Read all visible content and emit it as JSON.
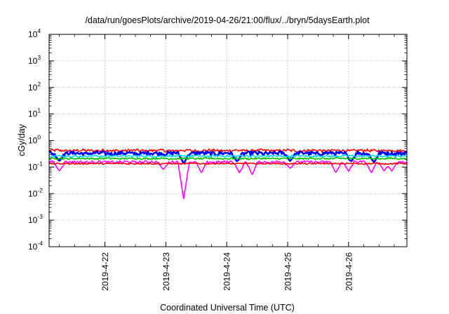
{
  "chart_data": {
    "type": "line",
    "title": "/data/run/goesPlots/archive/2019-04-26/21:00/flux/../bryn/5daysEarth.plot",
    "xlabel": "Coordinated Universal Time (UTC)",
    "ylabel": "cGy/day",
    "y_scale": "log",
    "ylim": [
      0.0001,
      10000
    ],
    "y_ticks": [
      {
        "mantissa": "10",
        "exp": "-4"
      },
      {
        "mantissa": "10",
        "exp": "-3"
      },
      {
        "mantissa": "10",
        "exp": "-2"
      },
      {
        "mantissa": "10",
        "exp": "-1"
      },
      {
        "mantissa": "10",
        "exp": "0"
      },
      {
        "mantissa": "10",
        "exp": "1"
      },
      {
        "mantissa": "10",
        "exp": "2"
      },
      {
        "mantissa": "10",
        "exp": "3"
      },
      {
        "mantissa": "10",
        "exp": "4"
      }
    ],
    "xlim": [
      "2019-04-21T02:00",
      "2019-04-26T23:00"
    ],
    "x_ticks": [
      "2019-4-22",
      "2019-4-23",
      "2019-4-24",
      "2019-4-25",
      "2019-4-26"
    ],
    "grid": true,
    "series": [
      {
        "color": "#ff0000",
        "base": 0.42,
        "noise": 0.16,
        "dips": []
      },
      {
        "color": "#0000ff",
        "base": 0.33,
        "noise": 0.22,
        "dips": [
          [
            "2019-04-21T06:00",
            0.17
          ],
          [
            "2019-04-23T07:00",
            0.14
          ],
          [
            "2019-04-24T04:00",
            0.16
          ],
          [
            "2019-04-25T01:00",
            0.17
          ],
          [
            "2019-04-26T01:00",
            0.16
          ],
          [
            "2019-04-26T10:00",
            0.15
          ]
        ]
      },
      {
        "color": "#00d7ff",
        "base": 0.26,
        "noise": 0.12,
        "dips": []
      },
      {
        "color": "#00c000",
        "base": 0.21,
        "noise": 0.1,
        "dips": []
      },
      {
        "color": "#ff00ff",
        "base": 0.155,
        "noise": 0.14,
        "dips": [
          [
            "2019-04-21T06:00",
            0.07
          ],
          [
            "2019-04-22T23:00",
            0.08
          ],
          [
            "2019-04-23T07:00",
            0.006
          ],
          [
            "2019-04-23T14:00",
            0.06
          ],
          [
            "2019-04-24T05:00",
            0.06
          ],
          [
            "2019-04-24T10:00",
            0.05
          ],
          [
            "2019-04-25T01:00",
            0.09
          ],
          [
            "2019-04-25T19:00",
            0.06
          ],
          [
            "2019-04-26T00:00",
            0.07
          ],
          [
            "2019-04-26T09:00",
            0.06
          ],
          [
            "2019-04-26T14:00",
            0.07
          ],
          [
            "2019-04-26T17:00",
            0.07
          ]
        ]
      },
      {
        "color": "#ff0000",
        "base": 0.135,
        "noise": 0.08,
        "dips": []
      }
    ]
  }
}
